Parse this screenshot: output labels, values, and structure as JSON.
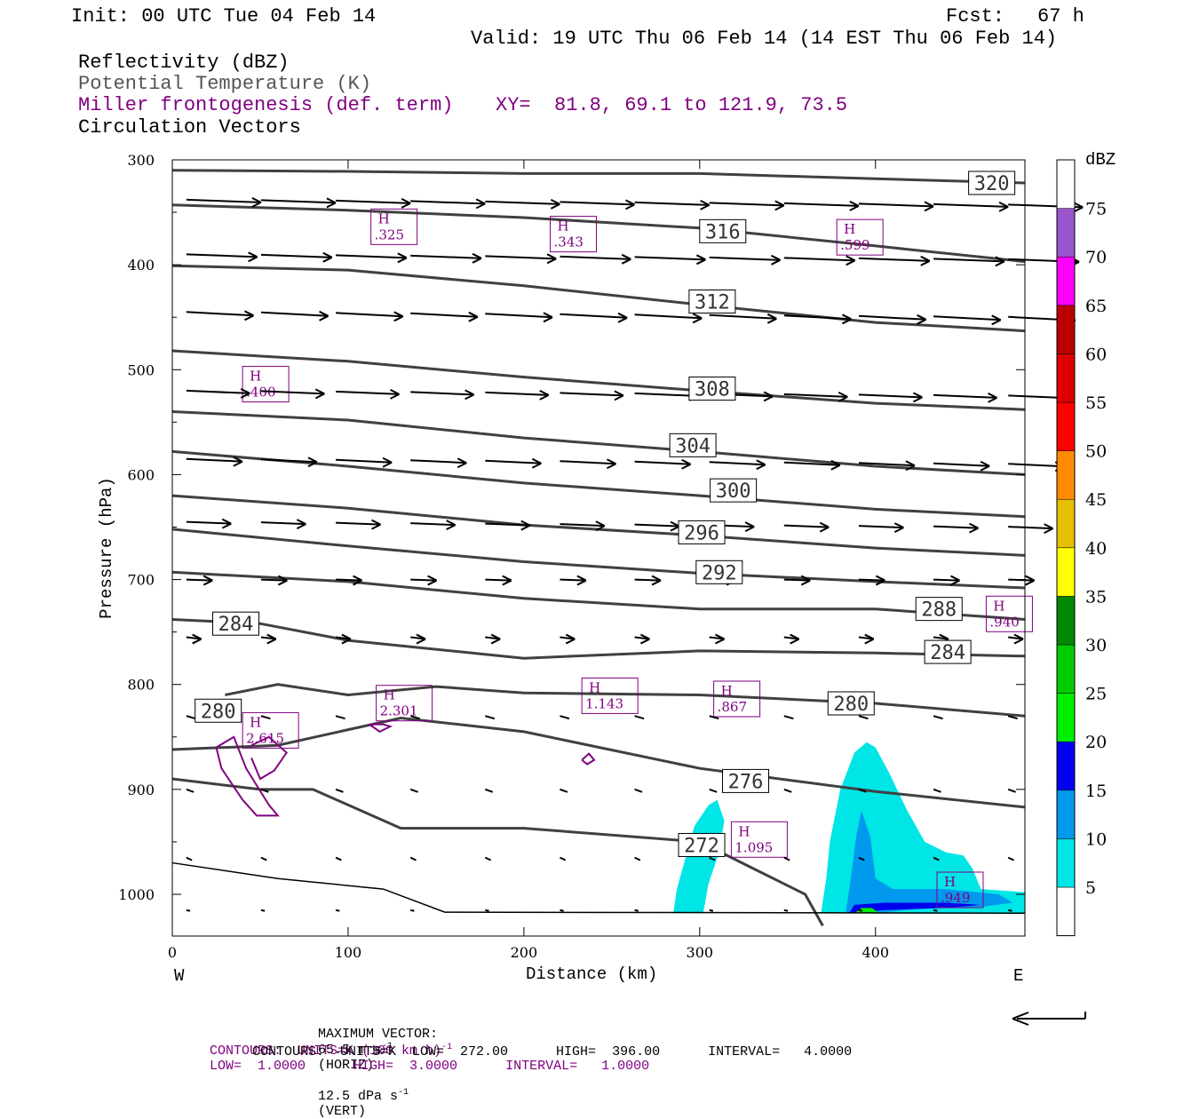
{
  "header": {
    "init": "Init: 00 UTC Tue 04 Feb 14",
    "fcst_label": "Fcst:",
    "fcst_value": "67 h",
    "valid": "Valid: 19 UTC Thu 06 Feb 14 (14 EST Thu 06 Feb 14)"
  },
  "fields": {
    "reflectivity": "Reflectivity (dBZ)",
    "theta": "Potential Temperature (K)",
    "frontogenesis": "Miller frontogenesis (def. term)",
    "xy": "XY=  81.8, 69.1 to 121.9, 73.5",
    "vectors": "Circulation Vectors"
  },
  "footer": {
    "max_vector_label": "MAXIMUM VECTOR:",
    "max_vector_horiz": "65.5 m s",
    "horiz_suffix": "(HORIZ)",
    "max_vector_vert": "12.5 dPa s",
    "vert_suffix": "(VERT)",
    "exp_minus1": "-1",
    "contours1_a": "CONTOURS:  UNITS=K (100 km h)",
    "contours1_b": "LOW=  1.0000      HIGH=  3.0000      INTERVAL=   1.0000",
    "contours2": "CONTOURS:  UNITS=K  LOW=  272.00      HIGH=  396.00      INTERVAL=   4.0000"
  },
  "colors": {
    "theta": "#404040",
    "fronto": "#800080",
    "dbz": [
      "#ffffff",
      "#00e5e5",
      "#0099ee",
      "#0000ee",
      "#00ee00",
      "#00cc00",
      "#008800",
      "#ffff00",
      "#e5bf00",
      "#ff8c00",
      "#ff0000",
      "#dd0000",
      "#bb0000",
      "#ff00ff",
      "#9955cc",
      "#ffffff"
    ]
  },
  "chart_data": {
    "type": "cross-section",
    "xlabel": "Distance (km)",
    "ylabel": "Pressure (hPa)",
    "x_ticks": [
      0,
      100,
      200,
      300,
      400
    ],
    "y_ticks": [
      300,
      400,
      500,
      600,
      700,
      800,
      900,
      1000
    ],
    "xlim": [
      0,
      485
    ],
    "ylim": [
      1040,
      300
    ],
    "x_end_labels": {
      "left": "W",
      "right": "E"
    },
    "colorbar": {
      "unit": "dBZ",
      "levels": [
        5,
        10,
        15,
        20,
        25,
        30,
        35,
        40,
        45,
        50,
        55,
        60,
        65,
        70,
        75
      ]
    },
    "theta_contours": [
      {
        "label": "320",
        "pts": [
          [
            0,
            310
          ],
          [
            100,
            311
          ],
          [
            200,
            313
          ],
          [
            300,
            313
          ],
          [
            400,
            318
          ],
          [
            485,
            322
          ]
        ],
        "lx": 455,
        "ly": 322
      },
      {
        "label": "316",
        "pts": [
          [
            0,
            343
          ],
          [
            100,
            348
          ],
          [
            200,
            355
          ],
          [
            300,
            365
          ],
          [
            400,
            382
          ],
          [
            485,
            397
          ]
        ],
        "lx": 302,
        "ly": 368
      },
      {
        "label": "312",
        "pts": [
          [
            0,
            401
          ],
          [
            100,
            405
          ],
          [
            200,
            420
          ],
          [
            300,
            438
          ],
          [
            400,
            455
          ],
          [
            485,
            463
          ]
        ],
        "lx": 296,
        "ly": 435
      },
      {
        "label": "308",
        "pts": [
          [
            0,
            482
          ],
          [
            100,
            492
          ],
          [
            200,
            507
          ],
          [
            300,
            520
          ],
          [
            400,
            532
          ],
          [
            485,
            538
          ]
        ],
        "lx": 296,
        "ly": 518
      },
      {
        "label": "304",
        "pts": [
          [
            0,
            540
          ],
          [
            100,
            548
          ],
          [
            200,
            565
          ],
          [
            300,
            578
          ],
          [
            400,
            592
          ],
          [
            485,
            600
          ]
        ],
        "lx": 285,
        "ly": 572
      },
      {
        "label": "300",
        "pts": [
          [
            0,
            578
          ],
          [
            100,
            592
          ],
          [
            200,
            608
          ],
          [
            300,
            620
          ],
          [
            400,
            633
          ],
          [
            485,
            640
          ]
        ],
        "lx": 308,
        "ly": 615
      },
      {
        "label": "296",
        "pts": [
          [
            0,
            620
          ],
          [
            100,
            632
          ],
          [
            200,
            648
          ],
          [
            300,
            658
          ],
          [
            400,
            670
          ],
          [
            485,
            677
          ]
        ],
        "lx": 290,
        "ly": 655
      },
      {
        "label": "292",
        "pts": [
          [
            0,
            652
          ],
          [
            100,
            668
          ],
          [
            200,
            683
          ],
          [
            300,
            694
          ],
          [
            400,
            702
          ],
          [
            485,
            708
          ]
        ],
        "lx": 300,
        "ly": 693
      },
      {
        "label": "288",
        "pts": [
          [
            0,
            693
          ],
          [
            100,
            702
          ],
          [
            200,
            718
          ],
          [
            300,
            728
          ],
          [
            400,
            728
          ],
          [
            485,
            738
          ]
        ],
        "lx": 425,
        "ly": 728
      },
      {
        "label": "284",
        "pts": [
          [
            0,
            738
          ],
          [
            50,
            742
          ],
          [
            100,
            758
          ],
          [
            200,
            775
          ],
          [
            300,
            768
          ],
          [
            400,
            770
          ],
          [
            485,
            773
          ]
        ],
        "lx": 25,
        "ly": 742
      },
      {
        "label": "284",
        "pts": [],
        "lx": 430,
        "ly": 769
      },
      {
        "label": "280",
        "pts": [
          [
            30,
            810
          ],
          [
            60,
            800
          ],
          [
            100,
            810
          ],
          [
            150,
            802
          ],
          [
            200,
            808
          ],
          [
            300,
            810
          ],
          [
            400,
            818
          ],
          [
            485,
            830
          ]
        ],
        "lx": 15,
        "ly": 825
      },
      {
        "label": "280",
        "pts": [],
        "lx": 375,
        "ly": 818
      },
      {
        "label": "276",
        "pts": [
          [
            0,
            862
          ],
          [
            60,
            858
          ],
          [
            130,
            832
          ],
          [
            200,
            845
          ],
          [
            300,
            880
          ],
          [
            400,
            902
          ],
          [
            485,
            917
          ]
        ],
        "lx": 315,
        "ly": 892
      },
      {
        "label": "272",
        "pts": [
          [
            0,
            890
          ],
          [
            50,
            900
          ],
          [
            80,
            900
          ],
          [
            130,
            937
          ],
          [
            200,
            937
          ],
          [
            300,
            950
          ],
          [
            330,
            975
          ],
          [
            360,
            1000
          ],
          [
            370,
            1030
          ]
        ],
        "lx": 290,
        "ly": 953
      }
    ],
    "frontogenesis_maxima": [
      {
        "label": "H",
        "value": ".325",
        "x": 115,
        "y": 368
      },
      {
        "label": "H",
        "value": ".343",
        "x": 217,
        "y": 375
      },
      {
        "label": "H",
        "value": ".599",
        "x": 380,
        "y": 378
      },
      {
        "label": "H",
        "value": ".400",
        "x": 42,
        "y": 518
      },
      {
        "label": "H",
        "value": ".940",
        "x": 465,
        "y": 737
      },
      {
        "label": "H",
        "value": "2.301",
        "x": 118,
        "y": 822
      },
      {
        "label": "H",
        "value": "1.143",
        "x": 235,
        "y": 815
      },
      {
        "label": "H",
        "value": ".867",
        "x": 310,
        "y": 818
      },
      {
        "label": "H",
        "value": "2.615",
        "x": 42,
        "y": 848
      },
      {
        "label": "H",
        "value": "1.095",
        "x": 320,
        "y": 952
      },
      {
        "label": "H",
        "value": ".949",
        "x": 437,
        "y": 1000
      }
    ]
  }
}
